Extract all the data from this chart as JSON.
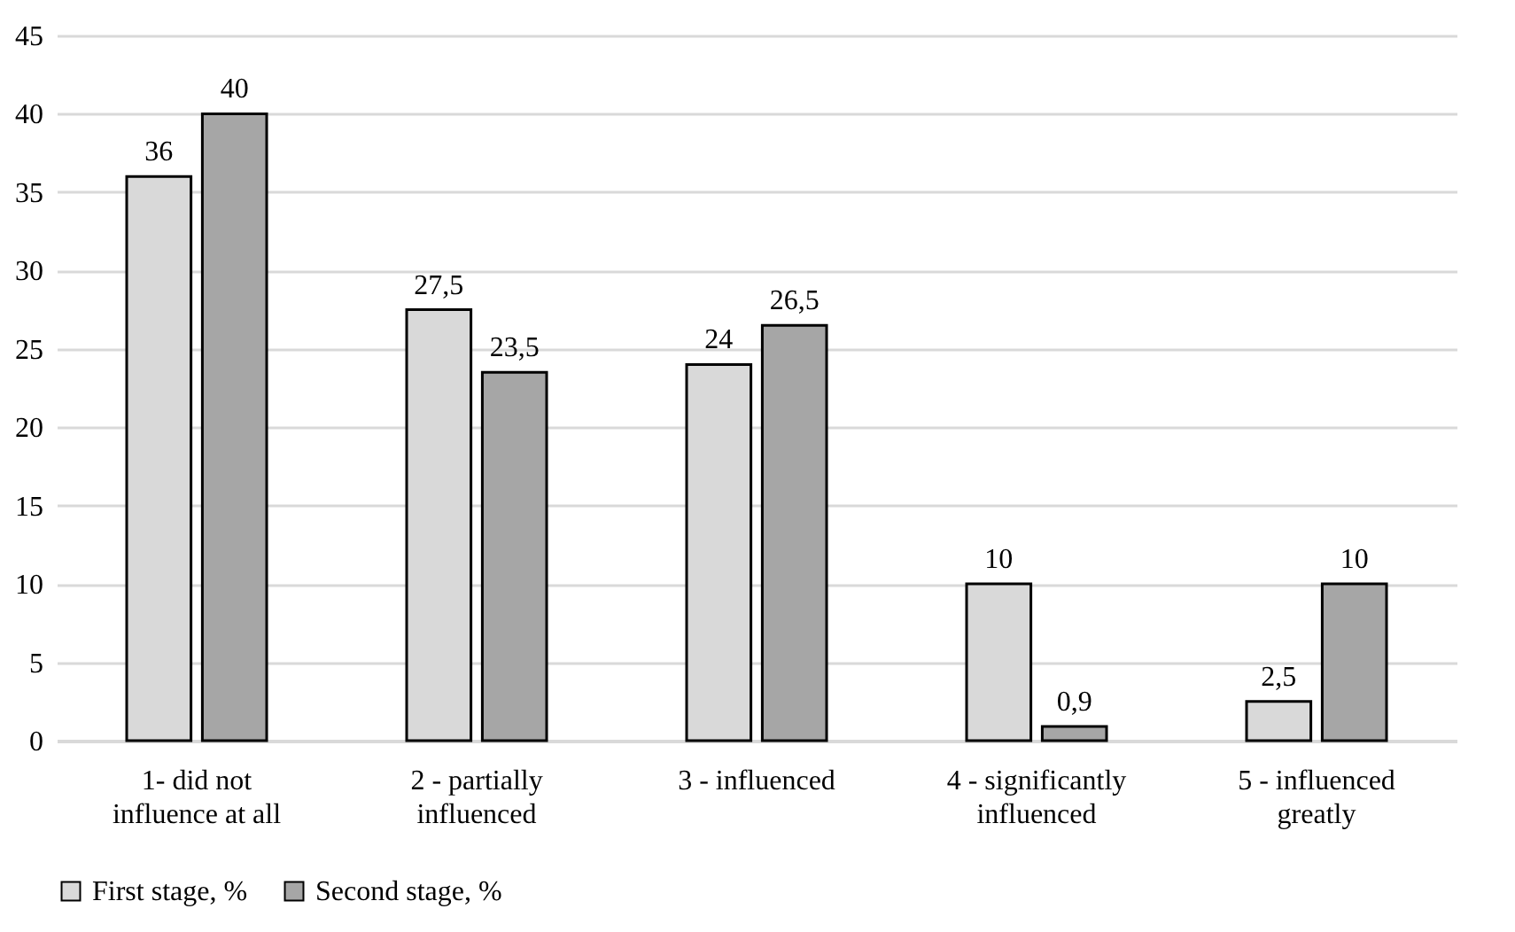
{
  "chart_data": {
    "type": "bar",
    "categories": [
      "1- did not influence at all",
      "2 - partially influenced",
      "3 - influenced",
      "4 - significantly influenced",
      "5 - influenced greatly"
    ],
    "series": [
      {
        "name": "First stage, %",
        "color": "#d9d9d9",
        "values": [
          36,
          27.5,
          24,
          10,
          2.5
        ],
        "value_labels": [
          "36",
          "27,5",
          "24",
          "10",
          "2,5"
        ]
      },
      {
        "name": "Second stage, %",
        "color": "#a6a6a6",
        "values": [
          40,
          23.5,
          26.5,
          0.9,
          10
        ],
        "value_labels": [
          "40",
          "23,5",
          "26,5",
          "0,9",
          "10"
        ]
      }
    ],
    "ylim": [
      0,
      45
    ],
    "yticks": [
      0,
      5,
      10,
      15,
      20,
      25,
      30,
      35,
      40,
      45
    ],
    "grid": "y",
    "legend": "bottom"
  }
}
